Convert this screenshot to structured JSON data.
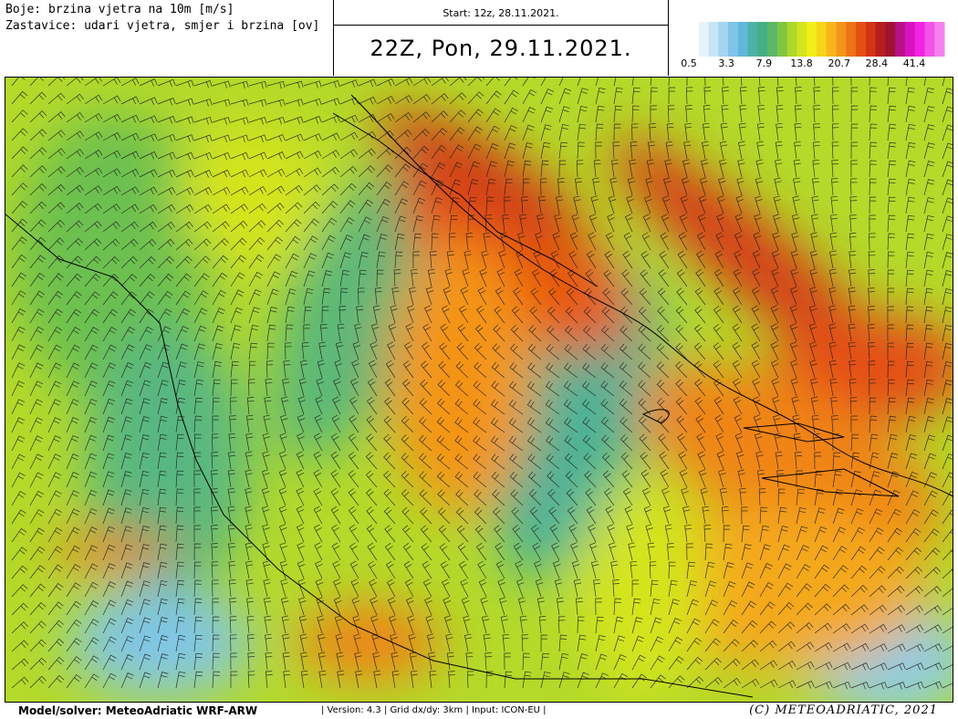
{
  "header": {
    "legend_lines": [
      "Boje: brzina vjetra na 10m [m/s]",
      "Zastavice: udari vjetra, smjer i brzina [ov]"
    ],
    "start": "Start: 12z, 28.11.2021.",
    "title": "22Z, Pon, 29.11.2021."
  },
  "colorbar": {
    "colors": [
      "#ffffff",
      "#e6f3fb",
      "#c6e5f7",
      "#a3d4f0",
      "#80c4ea",
      "#62b8da",
      "#4cb2a6",
      "#44ae86",
      "#5ab866",
      "#80c640",
      "#acd82c",
      "#d4e41e",
      "#f2ee16",
      "#f8d418",
      "#f8b41c",
      "#f4941a",
      "#ee7216",
      "#e45014",
      "#d23414",
      "#b81e1e",
      "#9e1430",
      "#b8108a",
      "#d812c2",
      "#f024e2",
      "#f452e8",
      "#f482ee"
    ],
    "labels": [
      "0.5",
      "3.3",
      "7.9",
      "13.8",
      "20.7",
      "28.4",
      "41.4"
    ]
  },
  "footer": {
    "model": "Model/solver: MeteoAdriatic WRF-ARW",
    "info": "| Version: 4.3 | Grid dx/dy: 3km | Input: ICON-EU |",
    "copyright": "(C) METEOADRIATIC, 2021"
  }
}
